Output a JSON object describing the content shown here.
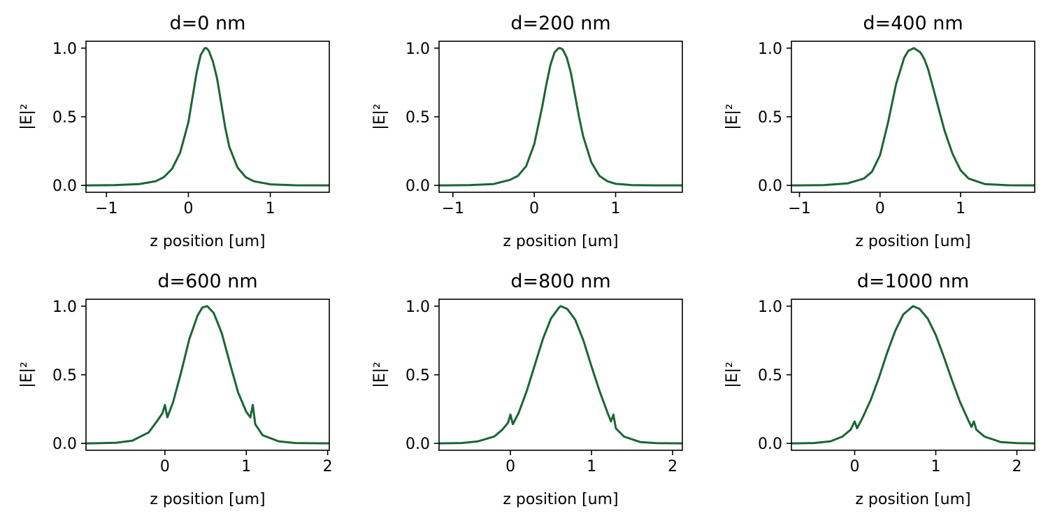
{
  "figure": {
    "line_color": "#1a6634",
    "background": "#ffffff"
  },
  "chart_data": [
    {
      "type": "line",
      "title": "d=0 nm",
      "xlabel": "z position [um]",
      "ylabel": "|E|²",
      "xlim": [
        -1.25,
        1.72
      ],
      "ylim": [
        -0.05,
        1.05
      ],
      "xticks": [
        -1,
        0,
        1
      ],
      "xtick_labels": [
        "−1",
        "0",
        "1"
      ],
      "yticks": [
        0.0,
        0.5,
        1.0
      ],
      "ytick_labels": [
        "0.0",
        "0.5",
        "1.0"
      ],
      "grid": false,
      "series": [
        {
          "x": [
            -1.25,
            -0.9,
            -0.6,
            -0.4,
            -0.3,
            -0.2,
            -0.1,
            0.0,
            0.05,
            0.1,
            0.15,
            0.2,
            0.22,
            0.25,
            0.3,
            0.35,
            0.4,
            0.45,
            0.5,
            0.6,
            0.7,
            0.8,
            1.0,
            1.3,
            1.72
          ],
          "y": [
            0.0,
            0.002,
            0.01,
            0.03,
            0.06,
            0.12,
            0.24,
            0.46,
            0.64,
            0.82,
            0.95,
            1.0,
            1.0,
            0.98,
            0.9,
            0.78,
            0.6,
            0.42,
            0.28,
            0.13,
            0.06,
            0.03,
            0.008,
            0.001,
            0.0
          ]
        }
      ]
    },
    {
      "type": "line",
      "title": "d=200 nm",
      "xlabel": "z position [um]",
      "ylabel": "|E|²",
      "xlim": [
        -1.17,
        1.82
      ],
      "ylim": [
        -0.05,
        1.05
      ],
      "xticks": [
        -1,
        0,
        1
      ],
      "xtick_labels": [
        "−1",
        "0",
        "1"
      ],
      "yticks": [
        0.0,
        0.5,
        1.0
      ],
      "ytick_labels": [
        "0.0",
        "0.5",
        "1.0"
      ],
      "grid": false,
      "series": [
        {
          "x": [
            -1.17,
            -0.8,
            -0.5,
            -0.3,
            -0.2,
            -0.1,
            0.0,
            0.1,
            0.15,
            0.2,
            0.25,
            0.3,
            0.32,
            0.35,
            0.4,
            0.45,
            0.5,
            0.55,
            0.6,
            0.7,
            0.8,
            0.9,
            1.0,
            1.2,
            1.5,
            1.82
          ],
          "y": [
            0.0,
            0.002,
            0.01,
            0.04,
            0.07,
            0.14,
            0.3,
            0.58,
            0.74,
            0.88,
            0.97,
            1.0,
            1.0,
            0.99,
            0.93,
            0.82,
            0.66,
            0.5,
            0.36,
            0.17,
            0.07,
            0.03,
            0.012,
            0.002,
            0.0,
            0.0
          ]
        }
      ]
    },
    {
      "type": "line",
      "title": "d=400 nm",
      "xlabel": "z position [um]",
      "ylabel": "|E|²",
      "xlim": [
        -1.1,
        1.92
      ],
      "ylim": [
        -0.05,
        1.05
      ],
      "xticks": [
        -1,
        0,
        1
      ],
      "xtick_labels": [
        "−1",
        "0",
        "1"
      ],
      "yticks": [
        0.0,
        0.5,
        1.0
      ],
      "ytick_labels": [
        "0.0",
        "0.5",
        "1.0"
      ],
      "grid": false,
      "series": [
        {
          "x": [
            -1.1,
            -0.7,
            -0.4,
            -0.2,
            -0.1,
            0.0,
            0.1,
            0.2,
            0.3,
            0.35,
            0.42,
            0.5,
            0.55,
            0.6,
            0.7,
            0.8,
            0.9,
            1.0,
            1.1,
            1.3,
            1.6,
            1.92
          ],
          "y": [
            0.0,
            0.002,
            0.015,
            0.05,
            0.1,
            0.22,
            0.46,
            0.74,
            0.93,
            0.98,
            1.0,
            0.97,
            0.92,
            0.84,
            0.62,
            0.4,
            0.23,
            0.11,
            0.05,
            0.01,
            0.001,
            0.0
          ]
        }
      ]
    },
    {
      "type": "line",
      "title": "d=600 nm",
      "xlabel": "z position [um]",
      "ylabel": "|E|²",
      "xlim": [
        -0.97,
        2.02
      ],
      "ylim": [
        -0.05,
        1.05
      ],
      "xticks": [
        0,
        1,
        2
      ],
      "xtick_labels": [
        "0",
        "1",
        "2"
      ],
      "yticks": [
        0.0,
        0.5,
        1.0
      ],
      "ytick_labels": [
        "0.0",
        "0.5",
        "1.0"
      ],
      "grid": false,
      "series": [
        {
          "x": [
            -0.97,
            -0.6,
            -0.4,
            -0.2,
            -0.1,
            -0.03,
            0.0,
            0.03,
            0.1,
            0.2,
            0.3,
            0.4,
            0.46,
            0.52,
            0.6,
            0.7,
            0.8,
            0.9,
            1.0,
            1.05,
            1.08,
            1.11,
            1.2,
            1.4,
            1.6,
            2.02
          ],
          "y": [
            0.0,
            0.005,
            0.02,
            0.08,
            0.16,
            0.22,
            0.28,
            0.19,
            0.3,
            0.52,
            0.76,
            0.93,
            0.99,
            1.0,
            0.95,
            0.8,
            0.58,
            0.37,
            0.23,
            0.19,
            0.28,
            0.14,
            0.06,
            0.015,
            0.003,
            0.0
          ]
        }
      ]
    },
    {
      "type": "line",
      "title": "d=800 nm",
      "xlabel": "z position [um]",
      "ylabel": "|E|²",
      "xlim": [
        -0.88,
        2.12
      ],
      "ylim": [
        -0.05,
        1.05
      ],
      "xticks": [
        0,
        1,
        2
      ],
      "xtick_labels": [
        "0",
        "1",
        "2"
      ],
      "yticks": [
        0.0,
        0.5,
        1.0
      ],
      "ytick_labels": [
        "0.0",
        "0.5",
        "1.0"
      ],
      "grid": false,
      "series": [
        {
          "x": [
            -0.88,
            -0.6,
            -0.4,
            -0.2,
            -0.1,
            -0.03,
            0.0,
            0.03,
            0.1,
            0.2,
            0.3,
            0.4,
            0.5,
            0.6,
            0.62,
            0.7,
            0.8,
            0.9,
            1.0,
            1.1,
            1.2,
            1.24,
            1.27,
            1.3,
            1.4,
            1.6,
            1.8,
            2.12
          ],
          "y": [
            0.0,
            0.003,
            0.015,
            0.05,
            0.1,
            0.15,
            0.21,
            0.14,
            0.22,
            0.38,
            0.57,
            0.76,
            0.91,
            0.99,
            1.0,
            0.98,
            0.9,
            0.75,
            0.56,
            0.38,
            0.22,
            0.16,
            0.21,
            0.11,
            0.05,
            0.01,
            0.002,
            0.0
          ]
        }
      ]
    },
    {
      "type": "line",
      "title": "d=1000 nm",
      "xlabel": "z position [um]",
      "ylabel": "|E|²",
      "xlim": [
        -0.78,
        2.22
      ],
      "ylim": [
        -0.05,
        1.05
      ],
      "xticks": [
        0,
        1,
        2
      ],
      "xtick_labels": [
        "0",
        "1",
        "2"
      ],
      "yticks": [
        0.0,
        0.5,
        1.0
      ],
      "ytick_labels": [
        "0.0",
        "0.5",
        "1.0"
      ],
      "grid": false,
      "series": [
        {
          "x": [
            -0.78,
            -0.5,
            -0.3,
            -0.15,
            -0.05,
            0.0,
            0.03,
            0.1,
            0.2,
            0.3,
            0.4,
            0.5,
            0.6,
            0.7,
            0.72,
            0.8,
            0.9,
            1.0,
            1.1,
            1.2,
            1.3,
            1.4,
            1.44,
            1.47,
            1.5,
            1.6,
            1.8,
            2.0,
            2.22
          ],
          "y": [
            0.0,
            0.003,
            0.015,
            0.05,
            0.1,
            0.16,
            0.11,
            0.19,
            0.32,
            0.48,
            0.66,
            0.82,
            0.94,
            0.99,
            1.0,
            0.98,
            0.91,
            0.79,
            0.63,
            0.46,
            0.3,
            0.17,
            0.12,
            0.16,
            0.1,
            0.05,
            0.01,
            0.002,
            0.0
          ]
        }
      ]
    }
  ]
}
